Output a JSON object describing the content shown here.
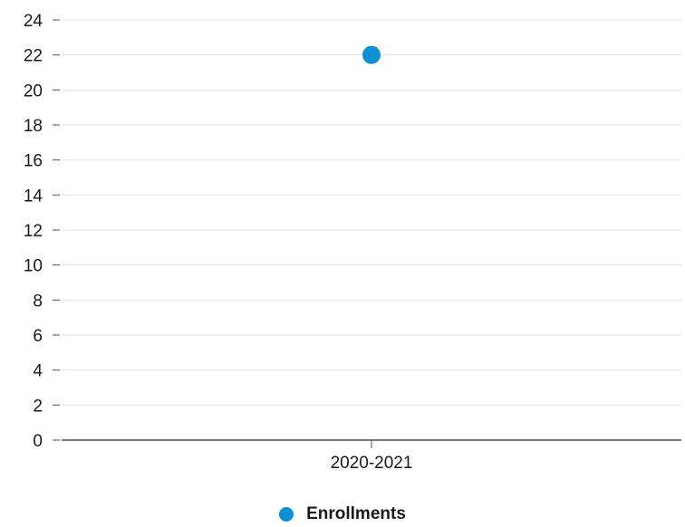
{
  "chart_data": {
    "type": "scatter",
    "categories": [
      "2020-2021"
    ],
    "series": [
      {
        "name": "Enrollments",
        "values": [
          22
        ]
      }
    ],
    "ylim": [
      0,
      24
    ],
    "yticks": [
      0,
      2,
      4,
      6,
      8,
      10,
      12,
      14,
      16,
      18,
      20,
      22,
      24
    ],
    "xlabel": "",
    "ylabel": "",
    "grid": true,
    "legend_position": "bottom-center"
  },
  "colors": {
    "series": "#0b8fd7",
    "grid": "#e3e3e3",
    "axis": "#4d4d4d",
    "ticks": "#555555"
  }
}
